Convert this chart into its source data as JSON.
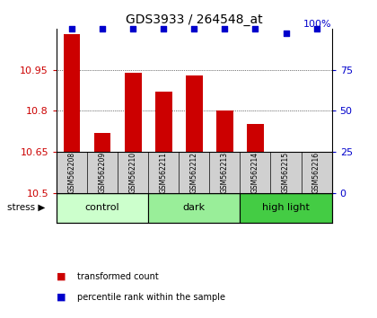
{
  "title": "GDS3933 / 264548_at",
  "samples": [
    "GSM562208",
    "GSM562209",
    "GSM562210",
    "GSM562211",
    "GSM562212",
    "GSM562213",
    "GSM562214",
    "GSM562215",
    "GSM562216"
  ],
  "transformed_counts": [
    11.08,
    10.72,
    10.94,
    10.87,
    10.93,
    10.8,
    10.75,
    10.52,
    10.55
  ],
  "percentile_ranks": [
    100,
    100,
    100,
    100,
    100,
    100,
    100,
    97,
    100
  ],
  "groups": [
    {
      "name": "control",
      "indices": [
        0,
        1,
        2
      ],
      "color": "#ccffcc"
    },
    {
      "name": "dark",
      "indices": [
        3,
        4,
        5
      ],
      "color": "#99ee99"
    },
    {
      "name": "high light",
      "indices": [
        6,
        7,
        8
      ],
      "color": "#44cc44"
    }
  ],
  "stress_label": "stress",
  "ylim_left": [
    10.5,
    11.1
  ],
  "ylim_right": [
    0,
    100
  ],
  "yticks_left": [
    10.5,
    10.65,
    10.8,
    10.95
  ],
  "yticks_right": [
    0,
    25,
    50,
    75
  ],
  "bar_color": "#cc0000",
  "dot_color": "#0000cc",
  "background_color": "#ffffff",
  "bar_width": 0.55,
  "legend_bar_label": "transformed count",
  "legend_dot_label": "percentile rank within the sample",
  "group_colors": [
    "#ccffcc",
    "#99ee99",
    "#44cc44"
  ]
}
